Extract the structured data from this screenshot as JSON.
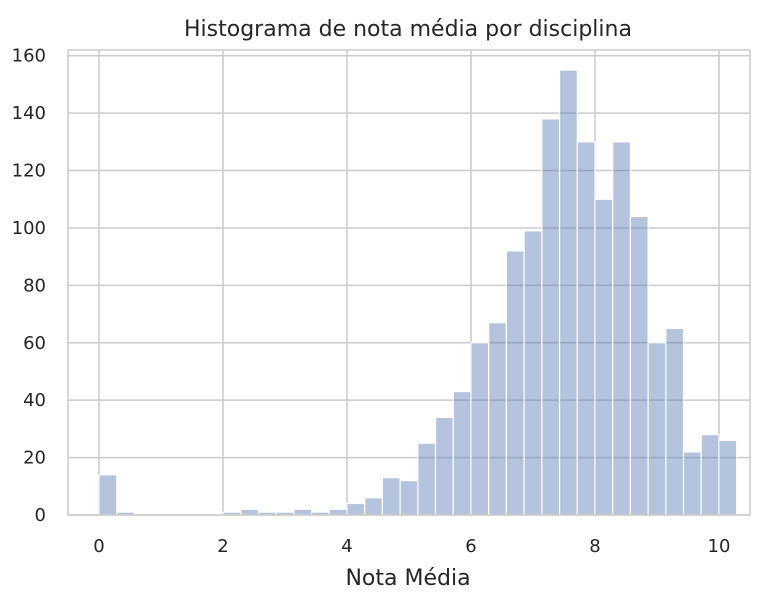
{
  "chart_data": {
    "type": "bar",
    "title": "Histograma de nota média por disciplina",
    "xlabel": "Nota Média",
    "ylabel": "",
    "xlim": [
      -0.5,
      10.5
    ],
    "ylim": [
      0,
      162
    ],
    "xticks": [
      0,
      2,
      4,
      6,
      8,
      10
    ],
    "yticks": [
      0,
      20,
      40,
      60,
      80,
      100,
      120,
      140,
      160
    ],
    "grid": true,
    "bin_width": 0.2857,
    "bin_start": 0,
    "values": [
      14,
      1,
      0,
      0,
      0,
      0,
      0,
      1,
      2,
      1,
      1,
      2,
      1,
      2,
      4,
      6,
      13,
      12,
      25,
      34,
      43,
      60,
      67,
      92,
      99,
      138,
      155,
      130,
      110,
      130,
      104,
      60,
      65,
      22,
      28,
      26
    ],
    "color": "#4c72b0"
  }
}
